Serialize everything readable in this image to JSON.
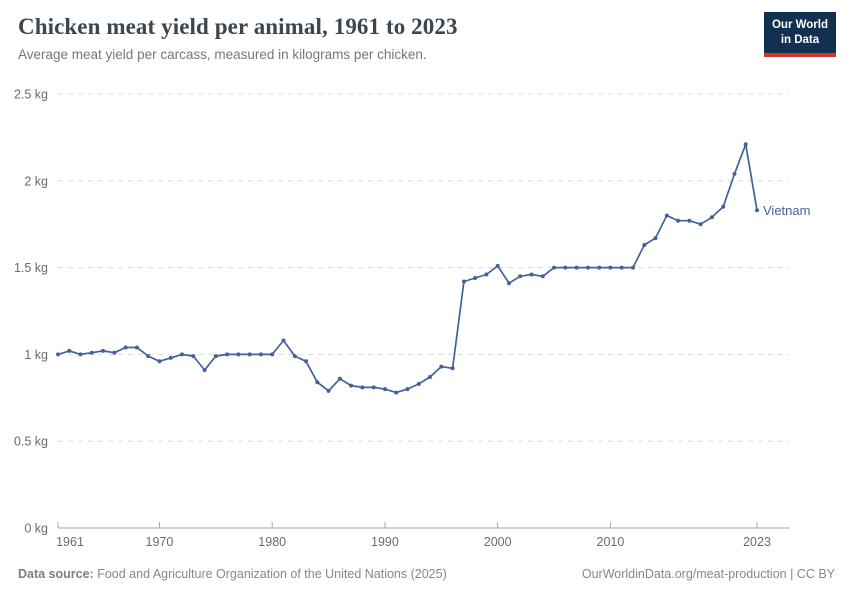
{
  "header": {
    "title": "Chicken meat yield per animal, 1961 to 2023",
    "subtitle": "Average meat yield per carcass, measured in kilograms per chicken."
  },
  "logo": {
    "line1": "Our World",
    "line2": "in Data",
    "bg_color": "#12304f",
    "accent_color": "#d2352c"
  },
  "footer": {
    "source_label": "Data source:",
    "source_text": "Food and Agriculture Organization of the United Nations (2025)",
    "link_text": "OurWorldinData.org/meat-production | CC BY"
  },
  "chart_data": {
    "type": "line",
    "title": "Chicken meat yield per animal, 1961 to 2023",
    "xlabel": "",
    "ylabel": "kilograms per chicken",
    "unit": "kg",
    "grid": true,
    "legend_position": "line-end-label",
    "ylim": [
      0,
      2.5
    ],
    "xlim": [
      1961,
      2023
    ],
    "y_ticks": [
      {
        "value": 0,
        "label": "0 kg"
      },
      {
        "value": 0.5,
        "label": "0.5 kg"
      },
      {
        "value": 1,
        "label": "1 kg"
      },
      {
        "value": 1.5,
        "label": "1.5 kg"
      },
      {
        "value": 2,
        "label": "2 kg"
      },
      {
        "value": 2.5,
        "label": "2.5 kg"
      }
    ],
    "x_ticks": [
      1961,
      1970,
      1980,
      1990,
      2000,
      2010,
      2023
    ],
    "x": [
      1961,
      1962,
      1963,
      1964,
      1965,
      1966,
      1967,
      1968,
      1969,
      1970,
      1971,
      1972,
      1973,
      1974,
      1975,
      1976,
      1977,
      1978,
      1979,
      1980,
      1981,
      1982,
      1983,
      1984,
      1985,
      1986,
      1987,
      1988,
      1989,
      1990,
      1991,
      1992,
      1993,
      1994,
      1995,
      1996,
      1997,
      1998,
      1999,
      2000,
      2001,
      2002,
      2003,
      2004,
      2005,
      2006,
      2007,
      2008,
      2009,
      2010,
      2011,
      2012,
      2013,
      2014,
      2015,
      2016,
      2017,
      2018,
      2019,
      2020,
      2021,
      2022,
      2023
    ],
    "series": [
      {
        "name": "Vietnam",
        "color": "#44619b",
        "values": [
          1.0,
          1.02,
          1.0,
          1.01,
          1.02,
          1.01,
          1.04,
          1.04,
          0.99,
          0.96,
          0.98,
          1.0,
          0.99,
          0.91,
          0.99,
          1.0,
          1.0,
          1.0,
          1.0,
          1.0,
          1.08,
          0.99,
          0.96,
          0.84,
          0.79,
          0.86,
          0.82,
          0.81,
          0.81,
          0.8,
          0.78,
          0.8,
          0.83,
          0.87,
          0.93,
          0.92,
          1.42,
          1.44,
          1.46,
          1.51,
          1.41,
          1.45,
          1.46,
          1.45,
          1.5,
          1.5,
          1.5,
          1.5,
          1.5,
          1.5,
          1.5,
          1.5,
          1.63,
          1.67,
          1.8,
          1.77,
          1.77,
          1.75,
          1.79,
          1.85,
          2.04,
          2.21,
          1.83
        ]
      }
    ],
    "gridline_color": "#dcdcdc",
    "axis_color": "#a5a5a5",
    "tick_label_color": "#6b6b6b"
  }
}
